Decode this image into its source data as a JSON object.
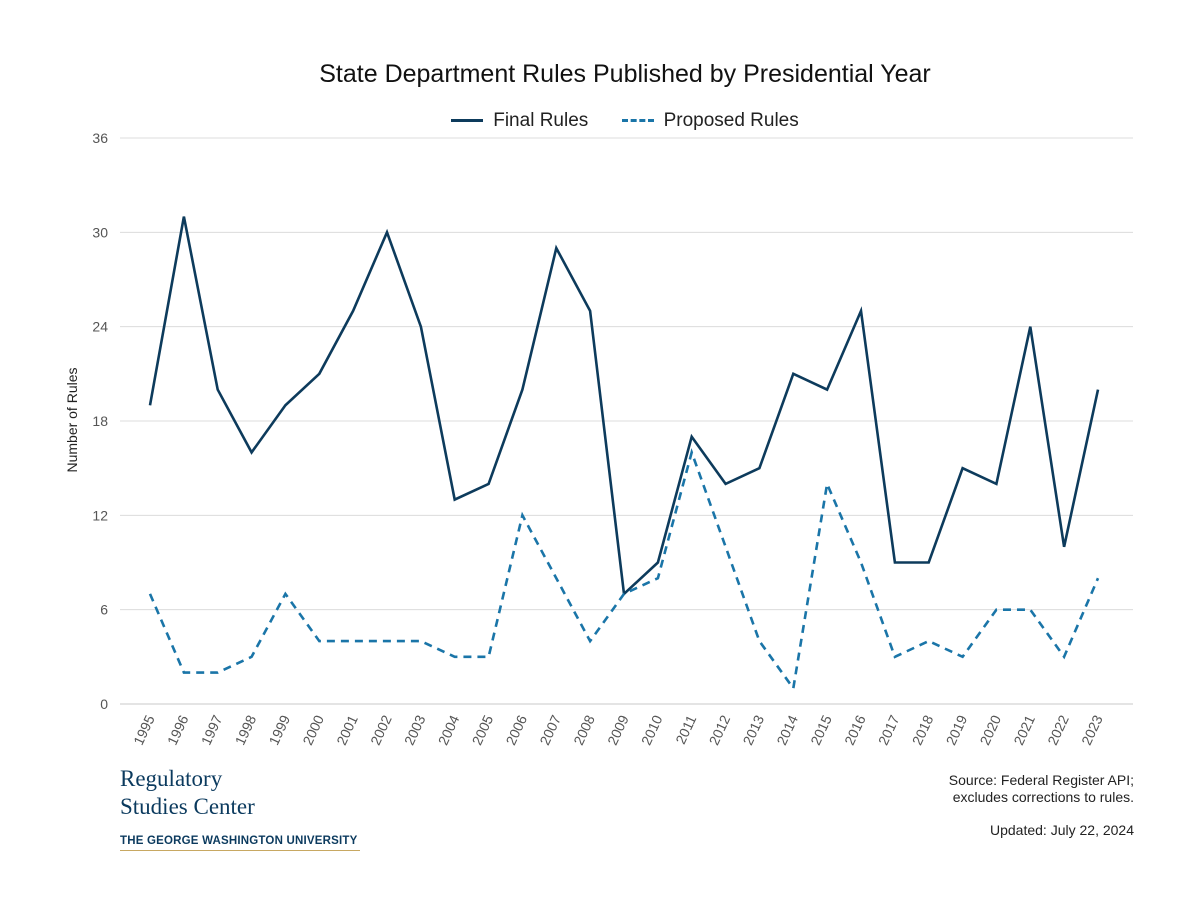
{
  "chart_data": {
    "type": "line",
    "title": "State Department Rules Published by Presidential Year",
    "ylabel": "Number of Rules",
    "xlabel": "",
    "ylim": [
      0,
      36
    ],
    "yticks": [
      0,
      6,
      12,
      18,
      24,
      30,
      36
    ],
    "grid": true,
    "legend_position": "top-center",
    "x": [
      "1995",
      "1996",
      "1997",
      "1998",
      "1999",
      "2000",
      "2001",
      "2002",
      "2003",
      "2004",
      "2005",
      "2006",
      "2007",
      "2008",
      "2009",
      "2010",
      "2011",
      "2012",
      "2013",
      "2014",
      "2015",
      "2016",
      "2017",
      "2018",
      "2019",
      "2020",
      "2021",
      "2022",
      "2023"
    ],
    "series": [
      {
        "name": "Final Rules",
        "style": "solid",
        "color": "#0d3b5c",
        "values": [
          19,
          31,
          20,
          16,
          19,
          21,
          25,
          30,
          24,
          13,
          14,
          20,
          29,
          25,
          7,
          9,
          17,
          14,
          15,
          21,
          20,
          25,
          9,
          9,
          15,
          14,
          24,
          10,
          20
        ]
      },
      {
        "name": "Proposed Rules",
        "style": "dashed",
        "color": "#1a75a8",
        "values": [
          7,
          2,
          2,
          3,
          7,
          4,
          4,
          4,
          4,
          3,
          3,
          12,
          8,
          4,
          7,
          8,
          16,
          10,
          4,
          1,
          14,
          9,
          3,
          4,
          3,
          6,
          6,
          3,
          8
        ]
      }
    ]
  },
  "logo": {
    "line1": "Regulatory",
    "line2": "Studies Center",
    "university": "THE GEORGE WASHINGTON UNIVERSITY"
  },
  "source": {
    "line1": "Source: Federal Register API;",
    "line2": "excludes corrections to rules."
  },
  "updated": "Updated: July 22, 2024"
}
